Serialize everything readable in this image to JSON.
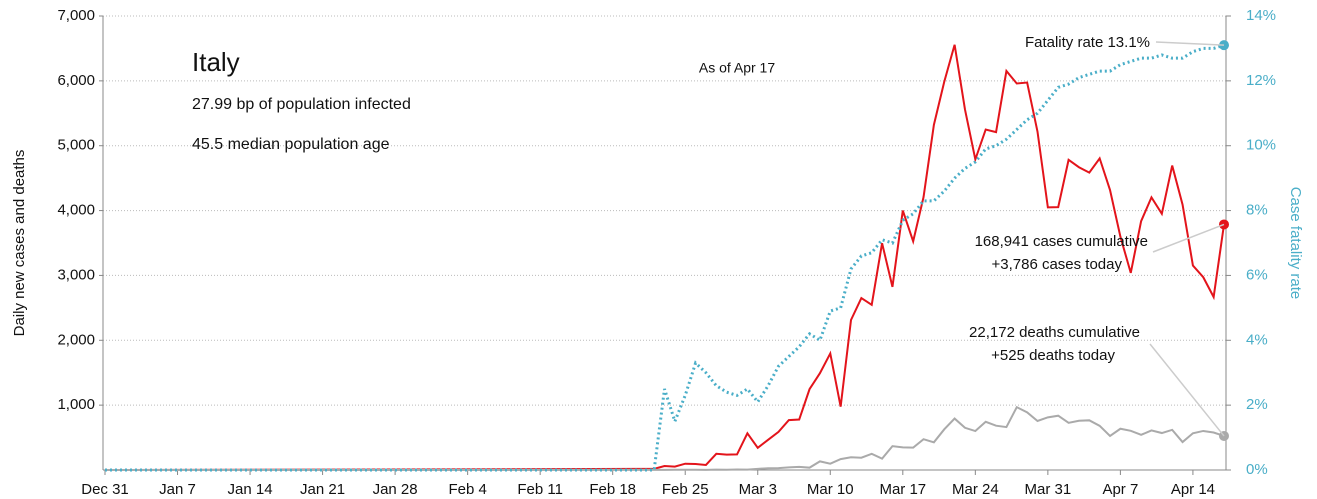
{
  "chart_data": {
    "type": "line",
    "y_label": "Daily new cases and deaths",
    "y2_label": "Case fatality rate",
    "annotations": [
      "Italy",
      "27.99 bp of population infected",
      "45.5 median population age",
      "As of Apr 17",
      "Fatality rate 13.1%",
      "168,941  cases cumulative",
      "+3,786  cases today",
      "22,172  deaths cumulative",
      "+525  deaths today"
    ],
    "x": [
      0,
      53,
      54,
      55,
      56,
      57,
      58,
      59,
      60,
      61,
      62,
      63,
      64,
      65,
      66,
      67,
      68,
      69,
      70,
      71,
      72,
      73,
      74,
      75,
      76,
      77,
      78,
      79,
      80,
      81,
      82,
      83,
      84,
      85,
      86,
      87,
      88,
      89,
      90,
      91,
      92,
      93,
      94,
      95,
      96,
      97,
      98,
      99,
      100,
      101,
      102,
      103,
      104,
      105,
      106,
      107,
      108
    ],
    "xlim": [
      0,
      108
    ],
    "xticks": [
      {
        "value": 0,
        "label": "Dec 31"
      },
      {
        "value": 7,
        "label": "Jan 7"
      },
      {
        "value": 14,
        "label": "Jan 14"
      },
      {
        "value": 21,
        "label": "Jan 21"
      },
      {
        "value": 28,
        "label": "Jan 28"
      },
      {
        "value": 35,
        "label": "Feb 4"
      },
      {
        "value": 42,
        "label": "Feb 11"
      },
      {
        "value": 49,
        "label": "Feb 18"
      },
      {
        "value": 56,
        "label": "Feb 25"
      },
      {
        "value": 63,
        "label": "Mar 3"
      },
      {
        "value": 70,
        "label": "Mar 10"
      },
      {
        "value": 77,
        "label": "Mar 17"
      },
      {
        "value": 84,
        "label": "Mar 24"
      },
      {
        "value": 91,
        "label": "Mar 31"
      },
      {
        "value": 98,
        "label": "Apr 7"
      },
      {
        "value": 105,
        "label": "Apr 14"
      }
    ],
    "ylim": [
      0,
      7000
    ],
    "yticks": [
      {
        "value": 1000,
        "label": "1,000"
      },
      {
        "value": 2000,
        "label": "2,000"
      },
      {
        "value": 3000,
        "label": "3,000"
      },
      {
        "value": 4000,
        "label": "4,000"
      },
      {
        "value": 5000,
        "label": "5,000"
      },
      {
        "value": 6000,
        "label": "6,000"
      },
      {
        "value": 7000,
        "label": "7,000"
      }
    ],
    "y2lim": [
      0,
      14
    ],
    "y2ticks": [
      {
        "value": 0,
        "label": "0%"
      },
      {
        "value": 2,
        "label": "2%"
      },
      {
        "value": 4,
        "label": "4%"
      },
      {
        "value": 6,
        "label": "6%"
      },
      {
        "value": 8,
        "label": "8%"
      },
      {
        "value": 10,
        "label": "10%"
      },
      {
        "value": 12,
        "label": "12%"
      },
      {
        "value": 14,
        "label": "14%"
      }
    ],
    "grid": true,
    "series": [
      {
        "color": "#e3141b",
        "line_style": "solid",
        "values": [
          0,
          17,
          62,
          53,
          97,
          93,
          78,
          250,
          238,
          240,
          566,
          342,
          466,
          587,
          769,
          778,
          1247,
          1492,
          1797,
          977,
          2313,
          2651,
          2547,
          3497,
          2823,
          4000,
          3526,
          4207,
          5322,
          5986,
          6557,
          5560,
          4789,
          5249,
          5210,
          6153,
          5959,
          5974,
          5217,
          4050,
          4053,
          4782,
          4668,
          4585,
          4805,
          4316,
          3599,
          3039,
          3836,
          4204,
          3951,
          4694,
          4092,
          3153,
          2972,
          2667,
          3786
        ]
      },
      {
        "color": "#aaaaaa",
        "line_style": "solid",
        "values": [
          0,
          1,
          2,
          3,
          4,
          3,
          2,
          5,
          4,
          8,
          5,
          18,
          27,
          28,
          41,
          49,
          36,
          133,
          97,
          168,
          196,
          189,
          250,
          175,
          368,
          349,
          345,
          475,
          427,
          627,
          793,
          651,
          601,
          743,
          683,
          662,
          969,
          889,
          756,
          812,
          837,
          727,
          760,
          766,
          681,
          525,
          636,
          604,
          542,
          610,
          570,
          619,
          431,
          566,
          602,
          578,
          525
        ]
      },
      {
        "color": "#4aaec8",
        "line_style": "dotted",
        "axis": "y2",
        "values": [
          0,
          0,
          2.5,
          1.5,
          2.3,
          3.3,
          3.0,
          2.6,
          2.4,
          2.3,
          2.5,
          2.1,
          2.6,
          3.2,
          3.5,
          3.8,
          4.2,
          4.0,
          4.9,
          5.0,
          6.2,
          6.6,
          6.7,
          7.1,
          7.0,
          7.7,
          7.9,
          8.3,
          8.3,
          8.6,
          9.0,
          9.3,
          9.5,
          9.9,
          10.0,
          10.2,
          10.5,
          10.8,
          11.0,
          11.4,
          11.8,
          11.9,
          12.1,
          12.2,
          12.3,
          12.3,
          12.5,
          12.6,
          12.7,
          12.7,
          12.8,
          12.7,
          12.7,
          12.9,
          13.0,
          13.0,
          13.1
        ]
      }
    ]
  }
}
